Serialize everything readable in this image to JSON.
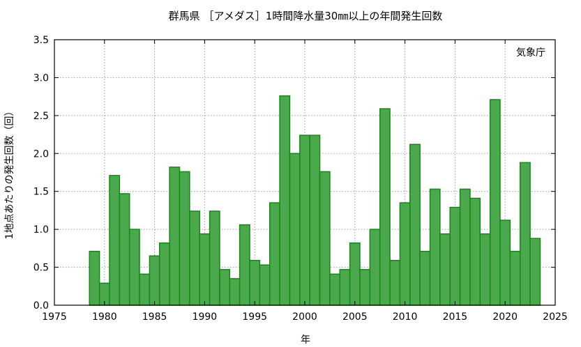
{
  "chart_data": {
    "type": "bar",
    "title": "群馬県 ［アメダス］1時間降水量30㎜以上の年間発生回数",
    "xlabel": "年",
    "ylabel": "1地点あたりの発生回数（回）",
    "source_note": "気象庁",
    "xlim": [
      1975,
      2025
    ],
    "ylim": [
      0,
      3.5
    ],
    "x_ticks": [
      "1975",
      "1980",
      "1985",
      "1990",
      "1995",
      "2000",
      "2005",
      "2010",
      "2015",
      "2020",
      "2025"
    ],
    "y_ticks": [
      "0.0",
      "0.5",
      "1.0",
      "1.5",
      "2.0",
      "2.5",
      "3.0",
      "3.5"
    ],
    "grid": true,
    "colors": {
      "bar_fill": "#4ca84c",
      "bar_stroke": "#138a13"
    },
    "years": [
      1979,
      1980,
      1981,
      1982,
      1983,
      1984,
      1985,
      1986,
      1987,
      1988,
      1989,
      1990,
      1991,
      1992,
      1993,
      1994,
      1995,
      1996,
      1997,
      1998,
      1999,
      2000,
      2001,
      2002,
      2003,
      2004,
      2005,
      2006,
      2007,
      2008,
      2009,
      2010,
      2011,
      2012,
      2013,
      2014,
      2015,
      2016,
      2017,
      2018,
      2019,
      2020,
      2021,
      2022,
      2023
    ],
    "values": [
      0.71,
      0.29,
      1.71,
      1.47,
      1.0,
      0.41,
      0.65,
      0.82,
      1.82,
      1.76,
      1.24,
      0.94,
      1.24,
      0.47,
      0.35,
      1.06,
      0.59,
      0.53,
      1.35,
      2.76,
      2.0,
      2.24,
      2.24,
      1.76,
      0.41,
      0.47,
      0.82,
      0.47,
      1.0,
      2.59,
      0.59,
      1.35,
      2.12,
      0.71,
      1.53,
      0.94,
      1.29,
      1.53,
      1.41,
      0.94,
      2.71,
      1.12,
      0.71,
      1.88,
      0.88
    ]
  }
}
